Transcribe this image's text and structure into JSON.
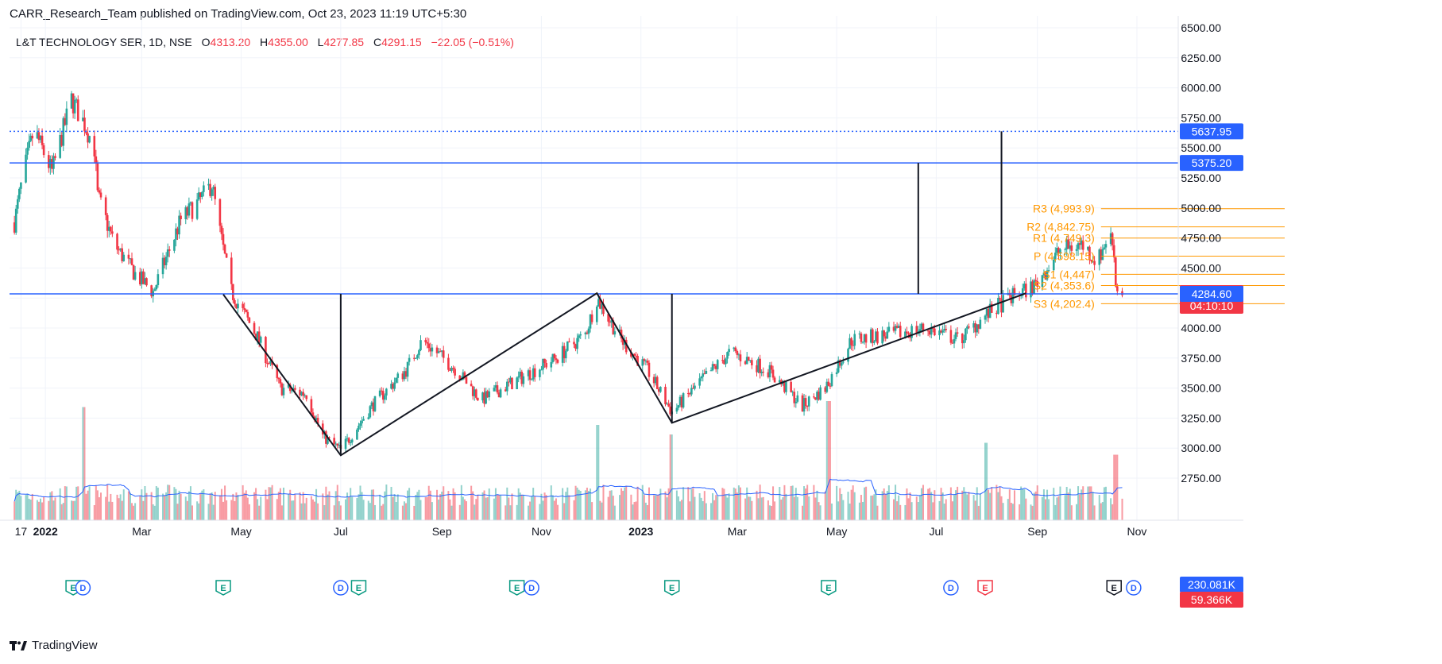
{
  "header": {
    "published": "CARR_Research_Team published on TradingView.com, Oct 23, 2023 11:19 UTC+5:30"
  },
  "legend": {
    "symbol": "L&T TECHNOLOGY SER, 1D, NSE",
    "o_label": "O",
    "o_value": "4313.20",
    "h_label": "H",
    "h_value": "4355.00",
    "l_label": "L",
    "l_value": "4277.85",
    "c_label": "C",
    "c_value": "4291.15",
    "change": "−22.05 (−0.51%)"
  },
  "footer": {
    "brand": "TradingView"
  },
  "colors": {
    "up": "#26a69a",
    "down": "#f23645",
    "level_line": "#2962ff",
    "pivot": "#ff9800",
    "volume_ma": "#2962ff",
    "grid": "#f0f3fa"
  },
  "chart_data": {
    "type": "candlestick",
    "x_ticks": [
      "17",
      "2022",
      "Mar",
      "May",
      "Jul",
      "Sep",
      "Nov",
      "2023",
      "Mar",
      "May",
      "Jul",
      "Sep",
      "Nov"
    ],
    "y_ticks": [
      "6500.00",
      "6250.00",
      "6000.00",
      "5750.00",
      "5500.00",
      "5250.00",
      "5000.00",
      "4750.00",
      "4500.00",
      "4250.00",
      "4000.00",
      "3750.00",
      "3500.00",
      "3250.00",
      "3000.00",
      "2750.00"
    ],
    "ylim": [
      2640,
      6520
    ],
    "grid": true,
    "price_tags": [
      {
        "value": "5637.95",
        "price": 5637.95,
        "color": "#2962ff"
      },
      {
        "value": "5375.20",
        "price": 5375.2,
        "color": "#2962ff"
      },
      {
        "value": "4291.15",
        "price": 4291.15,
        "color": "#f23645",
        "countdown": "04:10:10"
      },
      {
        "value": "4284.60",
        "price": 4284.6,
        "color": "#2962ff"
      },
      {
        "value": "230.081K",
        "price": 2640,
        "color": "#2962ff"
      },
      {
        "value": "59.366K",
        "price": 2590,
        "color": "#f23645"
      }
    ],
    "horizontal_levels": [
      {
        "price": 5637.95,
        "style": "dotted"
      },
      {
        "price": 5375.2,
        "style": "solid"
      },
      {
        "price": 4284.6,
        "style": "solid"
      }
    ],
    "pivots": [
      {
        "label": "R3 (4,993.9)",
        "price": 4993.9
      },
      {
        "label": "R2 (4,842.75)",
        "price": 4842.75
      },
      {
        "label": "R1 (4,749.3)",
        "price": 4749.3
      },
      {
        "label": "P (4,598.15)",
        "price": 4598.15
      },
      {
        "label": "S1 (4,447)",
        "price": 4447
      },
      {
        "label": "S2 (4,353.6)",
        "price": 4353.6
      },
      {
        "label": "S3 (4,202.4)",
        "price": 4202.4
      }
    ],
    "pattern_points": [
      {
        "date": "2022-04-20",
        "price": 4280
      },
      {
        "date": "2022-07-01",
        "price": 2940
      },
      {
        "date": "2022-12-05",
        "price": 4290
      },
      {
        "date": "2023-01-20",
        "price": 3210
      },
      {
        "date": "2023-08-25",
        "price": 4290
      }
    ],
    "vertical_measures": [
      {
        "date": "2022-07-01",
        "from": 2940,
        "to": 4285
      },
      {
        "date": "2023-01-20",
        "from": 3210,
        "to": 4285
      },
      {
        "date": "2023-06-20",
        "from": 4285,
        "to": 5375
      },
      {
        "date": "2023-08-10",
        "from": 4285,
        "to": 5638
      }
    ],
    "events": [
      {
        "letter": "E",
        "kind": "earnings",
        "color": "#089981",
        "date": "2022-01-18"
      },
      {
        "letter": "D",
        "kind": "dividend",
        "color": "#2962ff",
        "date": "2022-01-24"
      },
      {
        "letter": "E",
        "kind": "earnings",
        "color": "#089981",
        "date": "2022-04-20"
      },
      {
        "letter": "D",
        "kind": "dividend",
        "color": "#2962ff",
        "date": "2022-07-01"
      },
      {
        "letter": "E",
        "kind": "earnings",
        "color": "#089981",
        "date": "2022-07-12"
      },
      {
        "letter": "E",
        "kind": "earnings",
        "color": "#089981",
        "date": "2022-10-17"
      },
      {
        "letter": "D",
        "kind": "dividend",
        "color": "#2962ff",
        "date": "2022-10-26"
      },
      {
        "letter": "E",
        "kind": "earnings",
        "color": "#089981",
        "date": "2023-01-20"
      },
      {
        "letter": "E",
        "kind": "earnings",
        "color": "#089981",
        "date": "2023-04-26"
      },
      {
        "letter": "D",
        "kind": "dividend",
        "color": "#2962ff",
        "date": "2023-07-10"
      },
      {
        "letter": "E",
        "kind": "earnings",
        "color": "#f23645",
        "date": "2023-07-31"
      },
      {
        "letter": "E",
        "kind": "earnings",
        "color": "#131722",
        "date": "2023-10-18"
      },
      {
        "letter": "D",
        "kind": "dividend",
        "color": "#2962ff",
        "date": "2023-10-30"
      }
    ],
    "ohlc_anchors": [
      {
        "date": "2021-12-13",
        "price": 4880
      },
      {
        "date": "2021-12-18",
        "price": 5250
      },
      {
        "date": "2021-12-25",
        "price": 5650
      },
      {
        "date": "2022-01-05",
        "price": 5300
      },
      {
        "date": "2022-01-17",
        "price": 5900
      },
      {
        "date": "2022-01-25",
        "price": 5700
      },
      {
        "date": "2022-01-31",
        "price": 5500
      },
      {
        "date": "2022-02-02",
        "price": 5100
      },
      {
        "date": "2022-02-12",
        "price": 4700
      },
      {
        "date": "2022-02-25",
        "price": 4450
      },
      {
        "date": "2022-03-08",
        "price": 4300
      },
      {
        "date": "2022-03-25",
        "price": 4900
      },
      {
        "date": "2022-04-05",
        "price": 5050
      },
      {
        "date": "2022-04-13",
        "price": 5200
      },
      {
        "date": "2022-04-18",
        "price": 4800
      },
      {
        "date": "2022-04-25",
        "price": 4300
      },
      {
        "date": "2022-05-10",
        "price": 3950
      },
      {
        "date": "2022-05-25",
        "price": 3500
      },
      {
        "date": "2022-06-10",
        "price": 3450
      },
      {
        "date": "2022-06-20",
        "price": 3100
      },
      {
        "date": "2022-07-01",
        "price": 2980
      },
      {
        "date": "2022-07-20",
        "price": 3350
      },
      {
        "date": "2022-08-10",
        "price": 3650
      },
      {
        "date": "2022-08-20",
        "price": 3900
      },
      {
        "date": "2022-09-10",
        "price": 3650
      },
      {
        "date": "2022-09-25",
        "price": 3400
      },
      {
        "date": "2022-10-15",
        "price": 3550
      },
      {
        "date": "2022-11-10",
        "price": 3750
      },
      {
        "date": "2022-11-28",
        "price": 3950
      },
      {
        "date": "2022-12-05",
        "price": 4250
      },
      {
        "date": "2022-12-20",
        "price": 3900
      },
      {
        "date": "2023-01-05",
        "price": 3650
      },
      {
        "date": "2023-01-20",
        "price": 3300
      },
      {
        "date": "2023-02-10",
        "price": 3600
      },
      {
        "date": "2023-02-25",
        "price": 3800
      },
      {
        "date": "2023-03-20",
        "price": 3650
      },
      {
        "date": "2023-04-10",
        "price": 3350
      },
      {
        "date": "2023-04-24",
        "price": 3500
      },
      {
        "date": "2023-05-10",
        "price": 3900
      },
      {
        "date": "2023-06-05",
        "price": 3950
      },
      {
        "date": "2023-06-25",
        "price": 4000
      },
      {
        "date": "2023-07-15",
        "price": 3900
      },
      {
        "date": "2023-07-31",
        "price": 4100
      },
      {
        "date": "2023-08-15",
        "price": 4250
      },
      {
        "date": "2023-08-30",
        "price": 4350
      },
      {
        "date": "2023-09-15",
        "price": 4650
      },
      {
        "date": "2023-09-28",
        "price": 4700
      },
      {
        "date": "2023-10-08",
        "price": 4550
      },
      {
        "date": "2023-10-15",
        "price": 4800
      },
      {
        "date": "2023-10-18",
        "price": 4650
      },
      {
        "date": "2023-10-19",
        "price": 4350
      },
      {
        "date": "2023-10-23",
        "price": 4291
      }
    ],
    "volume_spikes": [
      {
        "date": "2022-01-24",
        "rel": 0.95
      },
      {
        "date": "2022-12-05",
        "rel": 0.8
      },
      {
        "date": "2023-01-20",
        "rel": 0.72
      },
      {
        "date": "2023-04-26",
        "rel": 1.0
      },
      {
        "date": "2023-07-31",
        "rel": 0.65
      },
      {
        "date": "2023-10-19",
        "rel": 0.55
      }
    ]
  }
}
